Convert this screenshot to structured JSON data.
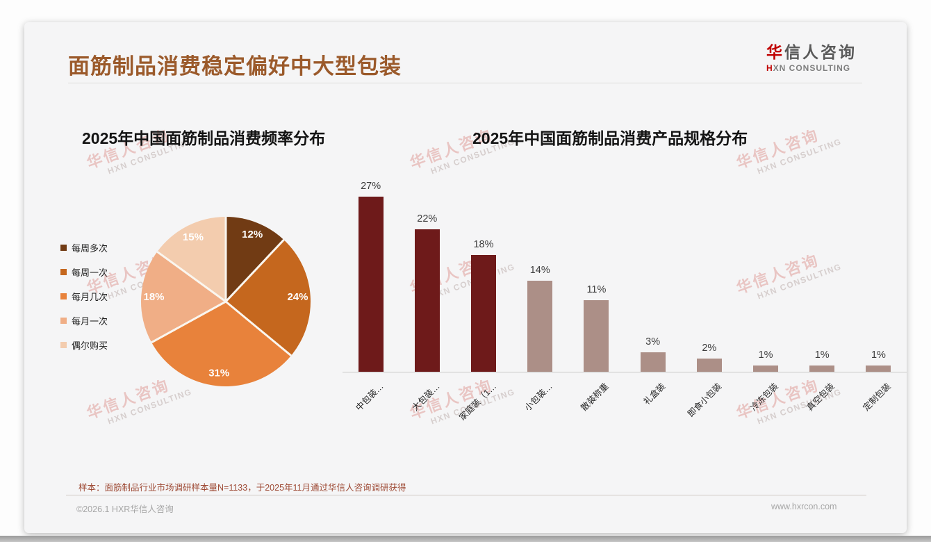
{
  "header": {
    "title": "面筋制品消费稳定偏好中大型包装",
    "logo": {
      "zh_red": "华",
      "zh_rest": "信人咨询",
      "en_red": "H",
      "en_rest": "XN CONSULTING"
    }
  },
  "watermark": {
    "line1": "华信人咨询",
    "line2": "HXN CONSULTING"
  },
  "chart_data": [
    {
      "type": "pie",
      "title": "2025年中国面筋制品消费频率分布",
      "categories": [
        "每周多次",
        "每周一次",
        "每月几次",
        "每月一次",
        "偶尔购买"
      ],
      "values": [
        12,
        24,
        31,
        18,
        15
      ],
      "colors": [
        "#713B14",
        "#C5671E",
        "#E8823B",
        "#F0AE86",
        "#F3CCAE"
      ],
      "label_format": "percent",
      "legend_position": "left",
      "start_angle_deg": 0,
      "direction": "clockwise"
    },
    {
      "type": "bar",
      "title": "2025年中国面筋制品消费产品规格分布",
      "categories": [
        "中包装…",
        "大包装…",
        "家庭装（1…",
        "小包装…",
        "散装称重",
        "礼盒装",
        "即食小包装",
        "冷冻包装",
        "真空包装",
        "定制包装"
      ],
      "values": [
        27,
        22,
        18,
        14,
        11,
        3,
        2,
        1,
        1,
        1
      ],
      "colors": [
        "#6E1A1A",
        "#6E1A1A",
        "#6E1A1A",
        "#AC8F87",
        "#AC8F87",
        "#AC8F87",
        "#AC8F87",
        "#AC8F87",
        "#AC8F87",
        "#AC8F87"
      ],
      "ylim": [
        0,
        30
      ],
      "grid": false,
      "data_labels": "percent",
      "xlabel": "",
      "ylabel": ""
    }
  ],
  "footer": {
    "footnote": "样本：面筋制品行业市场调研样本量N=1133，于2025年11月通过华信人咨询调研获得",
    "copyright": "©2026.1 HXR华信人咨询",
    "website": "www.hxrcon.com"
  }
}
